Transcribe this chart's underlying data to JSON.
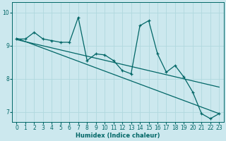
{
  "xlabel": "Humidex (Indice chaleur)",
  "bg_color": "#cce8ee",
  "line_color": "#006666",
  "grid_color": "#b0d8de",
  "xlim": [
    -0.5,
    23.5
  ],
  "ylim": [
    6.7,
    10.3
  ],
  "yticks": [
    7,
    8,
    9,
    10
  ],
  "xticks": [
    0,
    1,
    2,
    3,
    4,
    5,
    6,
    7,
    8,
    9,
    10,
    11,
    12,
    13,
    14,
    15,
    16,
    17,
    18,
    19,
    20,
    21,
    22,
    23
  ],
  "data_x": [
    0,
    1,
    2,
    3,
    4,
    5,
    6,
    7,
    8,
    9,
    10,
    11,
    12,
    13,
    14,
    15,
    16,
    17,
    18,
    19,
    20,
    21,
    22,
    23
  ],
  "data_y": [
    9.2,
    9.2,
    9.4,
    9.2,
    9.15,
    9.1,
    9.1,
    9.85,
    8.55,
    8.75,
    8.72,
    8.55,
    8.25,
    8.15,
    9.6,
    9.75,
    8.75,
    8.2,
    8.4,
    8.05,
    7.6,
    6.95,
    6.8,
    6.95
  ],
  "trend1_x": [
    0,
    23
  ],
  "trend1_y": [
    9.22,
    6.95
  ],
  "trend2_x": [
    0,
    23
  ],
  "trend2_y": [
    9.18,
    7.75
  ],
  "figsize": [
    3.2,
    2.0
  ],
  "dpi": 100
}
